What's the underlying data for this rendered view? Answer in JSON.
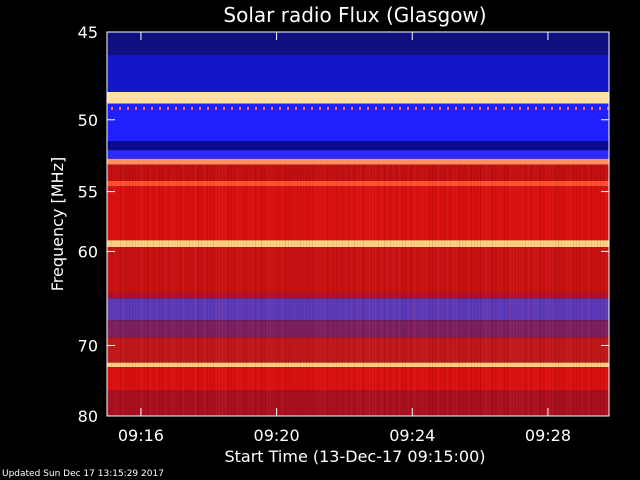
{
  "chart_data": {
    "type": "heatmap",
    "title": "Solar radio Flux (Glasgow)",
    "xlabel": "Start Time (13-Dec-17 09:15:00)",
    "ylabel": "Frequency [MHz]",
    "x_ticks": [
      "09:16",
      "09:20",
      "09:24",
      "09:28"
    ],
    "x_tick_values_min": [
      1,
      5,
      9,
      13
    ],
    "xlim_min": [
      0,
      14.8
    ],
    "y_ticks": [
      "45",
      "50",
      "55",
      "60",
      "70",
      "80"
    ],
    "y_tick_values": [
      45,
      50,
      55,
      60,
      70,
      80
    ],
    "ylim": [
      45,
      80
    ],
    "y_scale": "reciprocal",
    "colormap": [
      "#000050",
      "#1a1aff",
      "#5a3ab8",
      "#8a1030",
      "#d01010",
      "#ff4020",
      "#ffd080"
    ],
    "bands": [
      {
        "from": 45.0,
        "to": 46.2,
        "color": "#101080"
      },
      {
        "from": 46.2,
        "to": 48.3,
        "color": "#1515c8"
      },
      {
        "from": 48.3,
        "to": 49.0,
        "color": "#ffe0a0"
      },
      {
        "from": 49.0,
        "to": 51.4,
        "color": "#2020ff"
      },
      {
        "from": 51.4,
        "to": 52.0,
        "color": "#0a0a90"
      },
      {
        "from": 52.0,
        "to": 52.6,
        "color": "#2a2aff"
      },
      {
        "from": 52.6,
        "to": 53.0,
        "color": "#ff9060"
      },
      {
        "from": 53.0,
        "to": 54.2,
        "color": "#c01010"
      },
      {
        "from": 54.2,
        "to": 54.6,
        "color": "#ff5030"
      },
      {
        "from": 54.6,
        "to": 59.0,
        "color": "#d81010"
      },
      {
        "from": 59.0,
        "to": 59.6,
        "color": "#ffd080"
      },
      {
        "from": 59.6,
        "to": 64.0,
        "color": "#c81212"
      },
      {
        "from": 64.0,
        "to": 64.6,
        "color": "#b01030"
      },
      {
        "from": 64.6,
        "to": 67.0,
        "color": "#5a3ab8"
      },
      {
        "from": 67.0,
        "to": 69.0,
        "color": "#7a2060"
      },
      {
        "from": 69.0,
        "to": 72.2,
        "color": "#c01818"
      },
      {
        "from": 72.2,
        "to": 72.8,
        "color": "#ffd080"
      },
      {
        "from": 72.8,
        "to": 76.0,
        "color": "#d81010"
      },
      {
        "from": 76.0,
        "to": 80.0,
        "color": "#a81020"
      }
    ]
  },
  "footer": "Updated Sun Dec 17 13:15:29 2017"
}
